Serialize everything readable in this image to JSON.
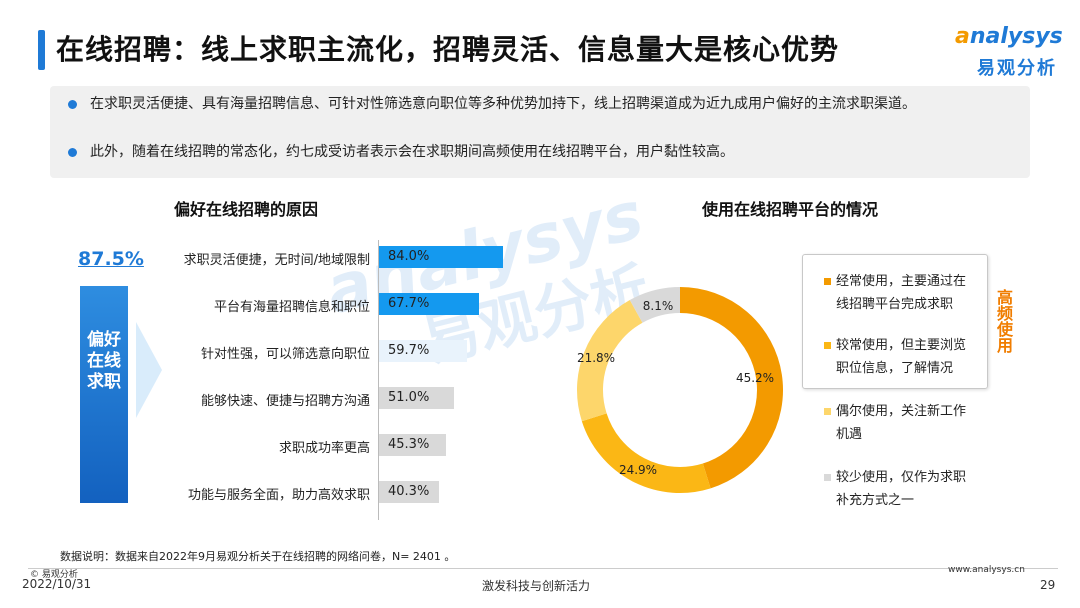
{
  "header": {
    "title": "在线招聘：线上求职主流化，招聘灵活、信息量大是核心优势",
    "logo_en_prefix": "a",
    "logo_en_rest": "nalysys",
    "logo_cn": "易观分析"
  },
  "summary": {
    "bullets": [
      "在求职灵活便捷、具有海量招聘信息、可针对性筛选意向职位等多种优势加持下，线上招聘渠道成为近九成用户偏好的主流求职渠道。",
      "此外，随着在线招聘的常态化，约七成受访者表示会在求职期间高频使用在线招聘平台，用户黏性较高。"
    ]
  },
  "left_panel": {
    "section_title": "偏好在线招聘的原因",
    "headline_pct": "87.5%",
    "vertical_label": "偏好在线求职"
  },
  "right_panel": {
    "section_title": "使用在线招聘平台的情况",
    "high_freq_label": "高频使用"
  },
  "watermark": {
    "en": "analysys",
    "cn": "易观分析"
  },
  "chart_data": [
    {
      "type": "bar",
      "orientation": "horizontal",
      "title": "偏好在线招聘的原因",
      "categories": [
        "求职灵活便捷，无时间/地域限制",
        "平台有海量招聘信息和职位",
        "针对性强，可以筛选意向职位",
        "能够快速、便捷与招聘方沟通",
        "求职成功率更高",
        "功能与服务全面，助力高效求职"
      ],
      "values": [
        84.0,
        67.7,
        59.7,
        51.0,
        45.3,
        40.3
      ],
      "value_labels": [
        "84.0%",
        "67.7%",
        "59.7%",
        "51.0%",
        "45.3%",
        "40.3%"
      ],
      "colors": [
        "#1499ef",
        "#1499ef",
        "#e9f3fc",
        "#d9d9d9",
        "#d9d9d9",
        "#d9d9d9"
      ],
      "xlim": [
        0,
        100
      ]
    },
    {
      "type": "pie",
      "variant": "donut",
      "title": "使用在线招聘平台的情况",
      "slices": [
        {
          "label": "经常使用，主要通过在线招聘平台完成求职",
          "value": 45.2,
          "value_label": "45.2%",
          "color": "#f39a00"
        },
        {
          "label": "较常使用，但主要浏览职位信息，了解情况",
          "value": 24.9,
          "value_label": "24.9%",
          "color": "#fbb715"
        },
        {
          "label": "偶尔使用，关注新工作机遇",
          "value": 21.8,
          "value_label": "21.8%",
          "color": "#fdd66b"
        },
        {
          "label": "较少使用，仅作为求职补充方式之一",
          "value": 8.1,
          "value_label": "8.1%",
          "color": "#d9d9d9"
        }
      ]
    }
  ],
  "footer": {
    "note": "数据说明：数据来自2022年9月易观分析关于在线招聘的网络问卷，N=  2401 。",
    "copyright": "© 易观分析",
    "date": "2022/10/31",
    "slogan": "激发科技与创新活力",
    "url": "www.analysys.cn",
    "page": "29"
  }
}
